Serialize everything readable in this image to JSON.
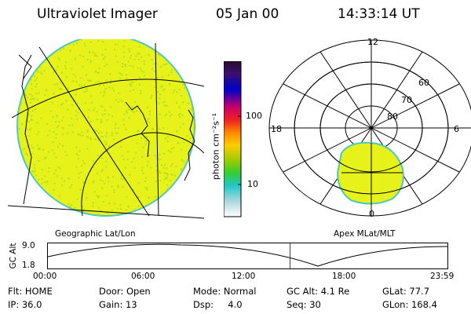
{
  "header": {
    "title": "Ultraviolet Imager",
    "date": "05 Jan 00",
    "time": "14:33:14 UT"
  },
  "colorbar": {
    "label": "photon cm⁻²s⁻¹",
    "ticks": [
      "100",
      "10"
    ],
    "colors": [
      "#2a0b2c",
      "#3b0f6b",
      "#0000cc",
      "#cc0066",
      "#ee2222",
      "#ff8800",
      "#ffcc00",
      "#99cc00",
      "#33cc33",
      "#22c6c6",
      "#aad8dd",
      "#ffffff"
    ]
  },
  "left_panel": {
    "caption": "Geographic Lat/Lon",
    "fill_color": "#e6f21a"
  },
  "right_panel": {
    "caption": "Apex MLat/MLT",
    "labels": {
      "top": "12",
      "left": "18",
      "right": "6",
      "bottom": "0"
    },
    "ring_labels": [
      "60",
      "70",
      "80"
    ]
  },
  "timeline": {
    "ylabel": "GC Alt",
    "ymax": "9.0",
    "ymin": "1.8",
    "xticks": [
      "00:00",
      "06:00",
      "12:00",
      "18:00",
      "23:59"
    ],
    "current_fraction": 0.606
  },
  "info": {
    "row1": {
      "flt": "Flt: HOME",
      "door": "Door: Open",
      "mode": "Mode: Normal",
      "gcalt": "GC Alt: 4.1 Re",
      "glat": "GLat: 77.7"
    },
    "row2": {
      "ip": "IP: 36.0",
      "gain": "Gain: 13",
      "dsp": "Dsp:     4.0",
      "seq": "Seq: 30",
      "glon": "GLon: 168.4"
    }
  }
}
